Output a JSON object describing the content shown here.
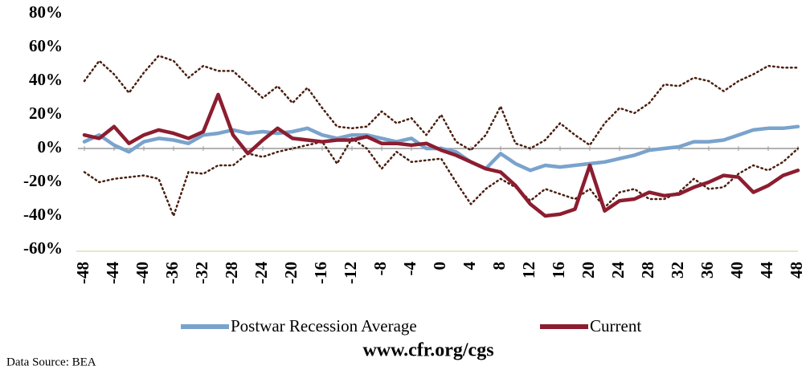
{
  "chart_data": {
    "type": "line",
    "x": [
      -48,
      -46,
      -44,
      -42,
      -40,
      -38,
      -36,
      -34,
      -32,
      -30,
      -28,
      -26,
      -24,
      -22,
      -20,
      -18,
      -16,
      -14,
      -12,
      -10,
      -8,
      -6,
      -4,
      -2,
      0,
      2,
      4,
      6,
      8,
      10,
      12,
      14,
      16,
      18,
      20,
      22,
      24,
      26,
      28,
      30,
      32,
      34,
      36,
      38,
      40,
      42,
      44,
      46,
      48
    ],
    "series": [
      {
        "color": "#4a1f0f",
        "line_style": "dotted",
        "values": [
          40,
          52,
          44,
          33,
          45,
          55,
          52,
          42,
          49,
          46,
          46,
          38,
          30,
          37,
          27,
          36,
          24,
          13,
          12,
          13,
          22,
          15,
          18,
          8,
          20,
          4,
          -1,
          8,
          25,
          3,
          0,
          5,
          15,
          8,
          2,
          15,
          24,
          21,
          27,
          38,
          37,
          42,
          40,
          34,
          40,
          44,
          49,
          48,
          48
        ]
      },
      {
        "color": "#4a1f0f",
        "line_style": "dotted",
        "values": [
          -14,
          -20,
          -18,
          -17,
          -16,
          -18,
          -40,
          -14,
          -15,
          -10,
          -10,
          -3,
          -5,
          -2,
          0,
          2,
          4,
          -9,
          6,
          0,
          -12,
          -2,
          -8,
          -7,
          -6,
          -20,
          -33,
          -24,
          -18,
          -23,
          -31,
          -24,
          -27,
          -30,
          -24,
          -35,
          -26,
          -24,
          -30,
          -30,
          -26,
          -18,
          -24,
          -23,
          -15,
          -10,
          -13,
          -8,
          0
        ]
      },
      {
        "name": "Postwar Recession  Average",
        "color": "#7aa3cc",
        "line_style": "solid",
        "values": [
          4,
          8,
          2,
          -2,
          4,
          6,
          5,
          3,
          8,
          9,
          11,
          9,
          10,
          9,
          10,
          12,
          8,
          6,
          8,
          8,
          6,
          4,
          6,
          0,
          0,
          -2,
          -8,
          -12,
          -3,
          -9,
          -13,
          -10,
          -11,
          -10,
          -9,
          -8,
          -6,
          -4,
          -1,
          0,
          1,
          4,
          4,
          5,
          8,
          11,
          12,
          12,
          13
        ]
      },
      {
        "name": "Current",
        "color": "#8c1d30",
        "line_style": "solid",
        "values": [
          8,
          6,
          13,
          3,
          8,
          11,
          9,
          6,
          10,
          32,
          8,
          -3,
          5,
          12,
          6,
          5,
          4,
          5,
          5,
          7,
          3,
          3,
          2,
          3,
          -1,
          -4,
          -8,
          -12,
          -14,
          -22,
          -33,
          -40,
          -39,
          -36,
          -10,
          -37,
          -31,
          -30,
          -26,
          -28,
          -27,
          -23,
          -20,
          -16,
          -17,
          -26,
          -22,
          -16,
          -13
        ]
      }
    ],
    "xlim": [
      -48,
      48
    ],
    "xticks": [
      -48,
      -44,
      -40,
      -36,
      -32,
      -28,
      -24,
      -20,
      -16,
      -12,
      -8,
      -4,
      0,
      4,
      8,
      12,
      16,
      20,
      24,
      28,
      32,
      36,
      40,
      44,
      48
    ],
    "ylim": [
      -60,
      80
    ],
    "yticks": [
      {
        "value": -60,
        "label": "-60%"
      },
      {
        "value": -40,
        "label": "-40%"
      },
      {
        "value": -20,
        "label": "-20%"
      },
      {
        "value": 0,
        "label": "0%"
      },
      {
        "value": 20,
        "label": "20%"
      },
      {
        "value": 40,
        "label": "40%"
      },
      {
        "value": 60,
        "label": "60%"
      },
      {
        "value": 80,
        "label": "80%"
      }
    ],
    "legend": "bottom",
    "source": "www.cfr.org/cgs",
    "note": "Data Source: BEA"
  }
}
